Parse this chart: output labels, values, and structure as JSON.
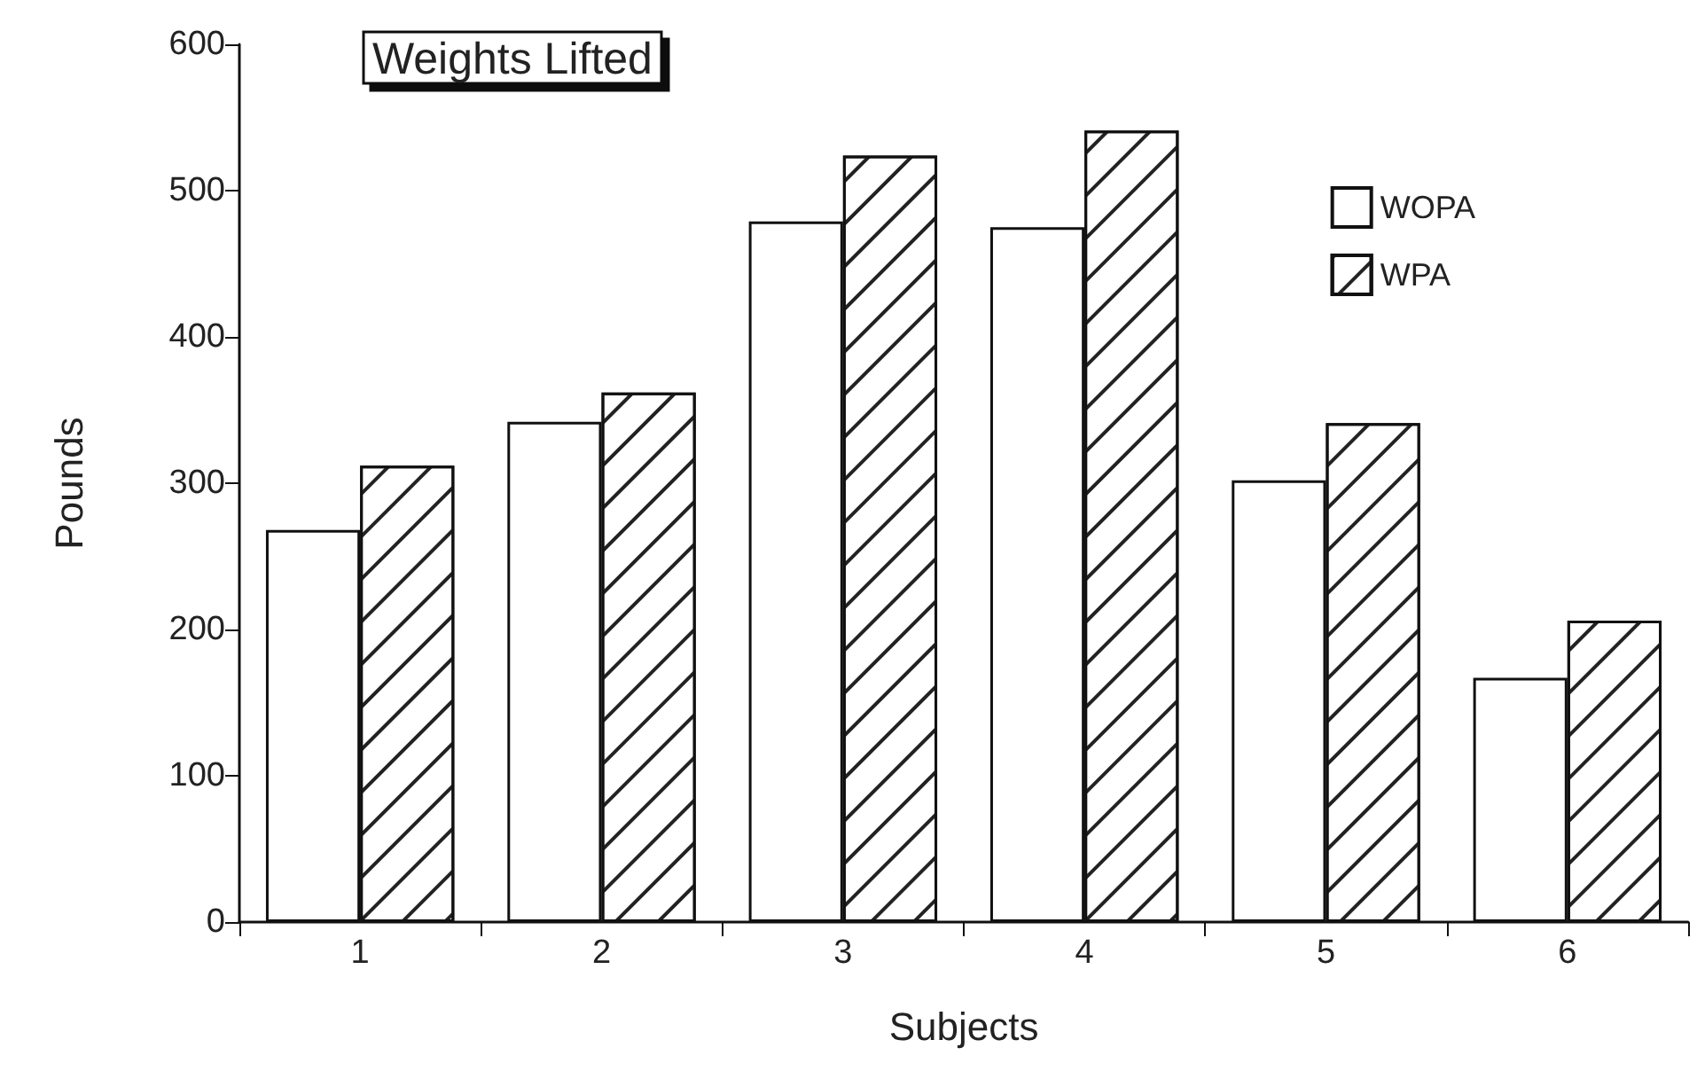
{
  "chart_data": {
    "type": "bar",
    "title": "Weights Lifted",
    "xlabel": "Subjects",
    "ylabel": "Pounds",
    "categories": [
      "1",
      "2",
      "3",
      "4",
      "5",
      "6"
    ],
    "series": [
      {
        "name": "WOPA",
        "color": "#ffffff",
        "values": [
          268,
          342,
          479,
          475,
          302,
          167
        ]
      },
      {
        "name": "WPA",
        "color": "#ffffff",
        "values": [
          312,
          362,
          524,
          541,
          341,
          206
        ]
      }
    ],
    "ylim": [
      0,
      600
    ],
    "yticks": [
      0,
      100,
      200,
      300,
      400,
      500,
      600
    ],
    "grid": false,
    "legend": "top right"
  }
}
